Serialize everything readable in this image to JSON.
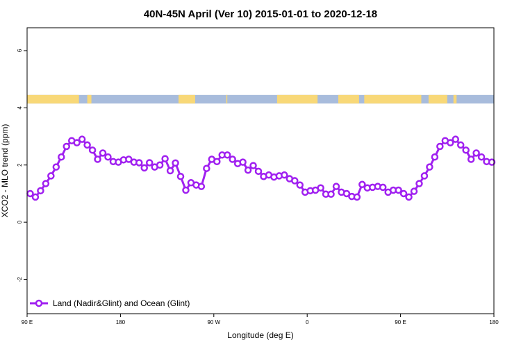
{
  "chart_data": {
    "type": "line",
    "title": "40N-45N April (Ver 10)   2015-01-01 to 2020-12-18",
    "xlabel": "Longitude (deg E)",
    "ylabel": "XCO2 - MLO trend (ppm)",
    "xlim": [
      90,
      540
    ],
    "ylim": [
      -3.2,
      6.8
    ],
    "x_ticks": [
      {
        "value": 90,
        "label": "90 E"
      },
      {
        "value": 180,
        "label": "180"
      },
      {
        "value": 270,
        "label": "90 W"
      },
      {
        "value": 360,
        "label": "0"
      },
      {
        "value": 450,
        "label": "90 E"
      },
      {
        "value": 540,
        "label": "180"
      }
    ],
    "y_ticks": [
      {
        "value": -2,
        "label": "-2"
      },
      {
        "value": 0,
        "label": "0"
      },
      {
        "value": 2,
        "label": "2"
      },
      {
        "value": 4,
        "label": "4"
      },
      {
        "value": 6,
        "label": "6"
      }
    ],
    "grid": false,
    "legend": {
      "position": "bottom-left"
    },
    "land_ocean_strip": {
      "y_range": [
        4.15,
        4.45
      ],
      "land_color": "#f8d878",
      "ocean_color": "#a8bcdc",
      "land_segments": [
        [
          90,
          140
        ],
        [
          148,
          152
        ],
        [
          236,
          252
        ],
        [
          282,
          283
        ],
        [
          331,
          370
        ],
        [
          390,
          410
        ],
        [
          415,
          470
        ],
        [
          477,
          495
        ],
        [
          501,
          504
        ]
      ]
    },
    "series": [
      {
        "name": "Land (Nadir&Glint) and Ocean (Glint)",
        "color": "#a020f0",
        "x": [
          93,
          98,
          103,
          108,
          113,
          118,
          123,
          128,
          133,
          138,
          143,
          148,
          153,
          158,
          163,
          168,
          173,
          178,
          183,
          188,
          193,
          198,
          203,
          208,
          213,
          218,
          223,
          228,
          233,
          238,
          243,
          248,
          253,
          258,
          263,
          268,
          273,
          278,
          283,
          288,
          293,
          298,
          303,
          308,
          313,
          318,
          323,
          328,
          333,
          338,
          343,
          348,
          353,
          358,
          363,
          368,
          373,
          378,
          383,
          388,
          393,
          398,
          403,
          408,
          413,
          418,
          423,
          428,
          433,
          438,
          443,
          448,
          453,
          458,
          463,
          468,
          473,
          478,
          483,
          488,
          493,
          498,
          503,
          508,
          513,
          518,
          523,
          528,
          533,
          538
        ],
        "values": [
          1.0,
          0.88,
          1.1,
          1.35,
          1.62,
          1.93,
          2.28,
          2.65,
          2.85,
          2.78,
          2.9,
          2.7,
          2.52,
          2.2,
          2.42,
          2.28,
          2.12,
          2.1,
          2.18,
          2.2,
          2.1,
          2.08,
          1.9,
          2.08,
          1.93,
          2.0,
          2.22,
          1.8,
          2.07,
          1.6,
          1.12,
          1.38,
          1.3,
          1.25,
          1.88,
          2.2,
          2.12,
          2.35,
          2.35,
          2.2,
          2.05,
          2.1,
          1.82,
          1.98,
          1.78,
          1.6,
          1.65,
          1.58,
          1.62,
          1.65,
          1.52,
          1.45,
          1.3,
          1.05,
          1.1,
          1.12,
          1.2,
          0.98,
          0.98,
          1.25,
          1.05,
          1.0,
          0.9,
          0.88,
          1.32,
          1.2,
          1.22,
          1.25,
          1.22,
          1.05,
          1.12,
          1.12,
          1.0,
          0.88,
          1.08,
          1.35,
          1.62,
          1.93,
          2.28,
          2.65,
          2.85,
          2.78,
          2.9,
          2.7,
          2.52,
          2.2,
          2.42,
          2.28,
          2.12,
          2.1
        ]
      }
    ]
  }
}
